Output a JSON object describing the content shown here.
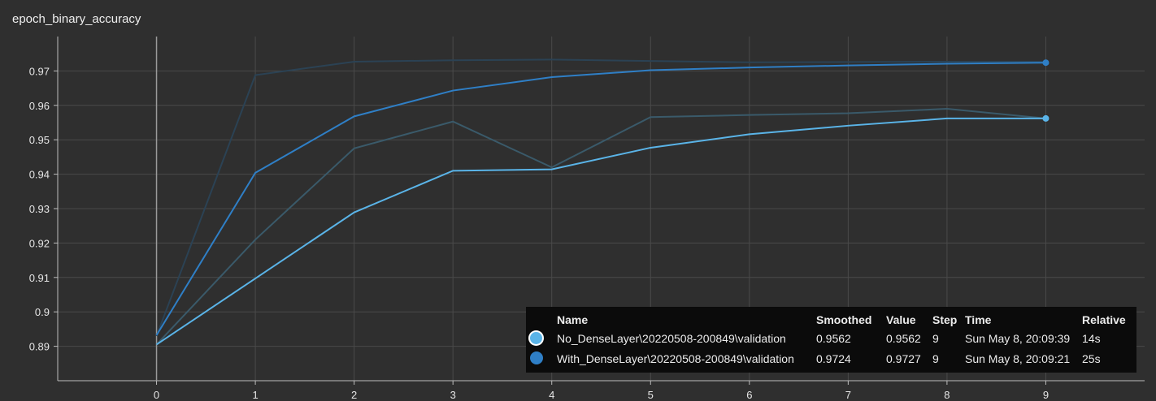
{
  "chart_data": {
    "type": "line",
    "title": "epoch_binary_accuracy",
    "xlabel": "",
    "ylabel": "",
    "xlim": [
      -1,
      10
    ],
    "ylim": [
      0.88,
      0.98
    ],
    "x_ticks": [
      "0",
      "1",
      "2",
      "3",
      "4",
      "5",
      "6",
      "7",
      "8",
      "9"
    ],
    "y_ticks": [
      "0.89",
      "0.9",
      "0.91",
      "0.92",
      "0.93",
      "0.94",
      "0.95",
      "0.96",
      "0.97"
    ],
    "grid": true,
    "x": [
      0,
      1,
      2,
      3,
      4,
      5,
      6,
      7,
      8,
      9
    ],
    "series": [
      {
        "name": "No_DenseLayer\\20220508-200849\\validation",
        "color": "#5ab4e8",
        "raw_color": "#3a5a6a",
        "smoothed": [
          0.8905,
          0.9097,
          0.9289,
          0.941,
          0.9414,
          0.9477,
          0.9516,
          0.9541,
          0.9562,
          0.9562
        ],
        "raw": [
          0.8905,
          0.921,
          0.9475,
          0.9553,
          0.942,
          0.9566,
          0.9572,
          0.9577,
          0.959,
          0.9562
        ]
      },
      {
        "name": "With_DenseLayer\\20220508-200849\\validation",
        "color": "#2f7fc6",
        "raw_color": "#2b4254",
        "smoothed": [
          0.8932,
          0.9404,
          0.9568,
          0.9643,
          0.9682,
          0.9702,
          0.971,
          0.9716,
          0.9721,
          0.9724
        ],
        "raw": [
          0.893,
          0.9688,
          0.9727,
          0.9731,
          0.9733,
          0.9729,
          0.9725,
          0.9726,
          0.9727,
          0.9727
        ]
      }
    ]
  },
  "tooltip": {
    "headers": {
      "name": "Name",
      "smoothed": "Smoothed",
      "value": "Value",
      "step": "Step",
      "time": "Time",
      "relative": "Relative"
    },
    "rows": [
      {
        "color": "#5ab4e8",
        "selected": true,
        "name": "No_DenseLayer\\20220508-200849\\validation",
        "smoothed": "0.9562",
        "value": "0.9562",
        "step": "9",
        "time": "Sun May 8, 20:09:39",
        "relative": "14s"
      },
      {
        "color": "#2f7fc6",
        "selected": false,
        "name": "With_DenseLayer\\20220508-200849\\validation",
        "smoothed": "0.9724",
        "value": "0.9727",
        "step": "9",
        "time": "Sun May 8, 20:09:21",
        "relative": "25s"
      }
    ]
  }
}
